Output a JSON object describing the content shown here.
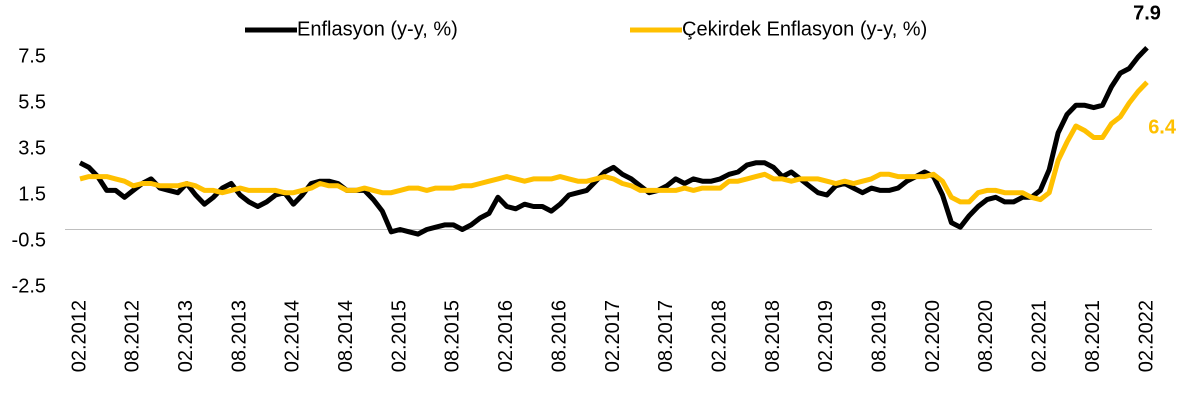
{
  "chart_data": {
    "type": "line",
    "categories": [
      "02.2012",
      null,
      null,
      null,
      null,
      null,
      "08.2012",
      null,
      null,
      null,
      null,
      null,
      "02.2013",
      null,
      null,
      null,
      null,
      null,
      "08.2013",
      null,
      null,
      null,
      null,
      null,
      "02.2014",
      null,
      null,
      null,
      null,
      null,
      "08.2014",
      null,
      null,
      null,
      null,
      null,
      "02.2015",
      null,
      null,
      null,
      null,
      null,
      "08.2015",
      null,
      null,
      null,
      null,
      null,
      "02.2016",
      null,
      null,
      null,
      null,
      null,
      "08.2016",
      null,
      null,
      null,
      null,
      null,
      "02.2017",
      null,
      null,
      null,
      null,
      null,
      "08.2017",
      null,
      null,
      null,
      null,
      null,
      "02.2018",
      null,
      null,
      null,
      null,
      null,
      "08.2018",
      null,
      null,
      null,
      null,
      null,
      "02.2019",
      null,
      null,
      null,
      null,
      null,
      "08.2019",
      null,
      null,
      null,
      null,
      null,
      "02.2020",
      null,
      null,
      null,
      null,
      null,
      "08.2020",
      null,
      null,
      null,
      null,
      null,
      "02.2021",
      null,
      null,
      null,
      null,
      null,
      "08.2021",
      null,
      null,
      null,
      null,
      null,
      "02.2022"
    ],
    "series": [
      {
        "name": "Enflasyon (y-y, %)",
        "color": "#000000",
        "values": [
          2.9,
          2.7,
          2.3,
          1.7,
          1.7,
          1.4,
          1.7,
          2.0,
          2.2,
          1.8,
          1.7,
          1.6,
          2.0,
          1.5,
          1.1,
          1.4,
          1.8,
          2.0,
          1.5,
          1.2,
          1.0,
          1.2,
          1.5,
          1.6,
          1.1,
          1.5,
          2.0,
          2.1,
          2.1,
          2.0,
          1.7,
          1.7,
          1.7,
          1.3,
          0.8,
          -0.1,
          0.0,
          -0.1,
          -0.2,
          0.0,
          0.1,
          0.2,
          0.2,
          0.0,
          0.2,
          0.5,
          0.7,
          1.4,
          1.0,
          0.9,
          1.1,
          1.0,
          1.0,
          0.8,
          1.1,
          1.5,
          1.6,
          1.7,
          2.1,
          2.5,
          2.7,
          2.4,
          2.2,
          1.9,
          1.6,
          1.7,
          1.9,
          2.2,
          2.0,
          2.2,
          2.1,
          2.1,
          2.2,
          2.4,
          2.5,
          2.8,
          2.9,
          2.9,
          2.7,
          2.3,
          2.5,
          2.2,
          1.9,
          1.6,
          1.5,
          1.9,
          2.0,
          1.8,
          1.6,
          1.8,
          1.7,
          1.7,
          1.8,
          2.1,
          2.3,
          2.5,
          2.3,
          1.5,
          0.3,
          0.1,
          0.6,
          1.0,
          1.3,
          1.4,
          1.2,
          1.2,
          1.4,
          1.4,
          1.7,
          2.6,
          4.2,
          5.0,
          5.4,
          5.4,
          5.3,
          5.4,
          6.2,
          6.8,
          7.0,
          7.5,
          7.9
        ]
      },
      {
        "name": "Çekirdek Enflasyon (y-y, %)",
        "color": "#ffc000",
        "values": [
          2.2,
          2.3,
          2.3,
          2.3,
          2.2,
          2.1,
          1.9,
          2.0,
          2.0,
          1.9,
          1.9,
          1.9,
          2.0,
          1.9,
          1.7,
          1.7,
          1.6,
          1.7,
          1.8,
          1.7,
          1.7,
          1.7,
          1.7,
          1.6,
          1.6,
          1.7,
          1.8,
          2.0,
          1.9,
          1.9,
          1.7,
          1.7,
          1.8,
          1.7,
          1.6,
          1.6,
          1.7,
          1.8,
          1.8,
          1.7,
          1.8,
          1.8,
          1.8,
          1.9,
          1.9,
          2.0,
          2.1,
          2.2,
          2.3,
          2.2,
          2.1,
          2.2,
          2.2,
          2.2,
          2.3,
          2.2,
          2.1,
          2.1,
          2.2,
          2.3,
          2.2,
          2.0,
          1.9,
          1.7,
          1.7,
          1.7,
          1.7,
          1.7,
          1.8,
          1.7,
          1.8,
          1.8,
          1.8,
          2.1,
          2.1,
          2.2,
          2.3,
          2.4,
          2.2,
          2.2,
          2.1,
          2.2,
          2.2,
          2.2,
          2.1,
          2.0,
          2.1,
          2.0,
          2.1,
          2.2,
          2.4,
          2.4,
          2.3,
          2.3,
          2.3,
          2.3,
          2.4,
          2.1,
          1.4,
          1.2,
          1.2,
          1.6,
          1.7,
          1.7,
          1.6,
          1.6,
          1.6,
          1.4,
          1.3,
          1.6,
          3.0,
          3.8,
          4.5,
          4.3,
          4.0,
          4.0,
          4.6,
          4.9,
          5.5,
          6.0,
          6.4
        ]
      }
    ],
    "ylim": [
      -2.5,
      9.5
    ],
    "yticks": [
      -2.5,
      -0.5,
      1.5,
      3.5,
      5.5,
      7.5
    ],
    "x_axis_at": 0,
    "grid": false,
    "legend": "top"
  }
}
